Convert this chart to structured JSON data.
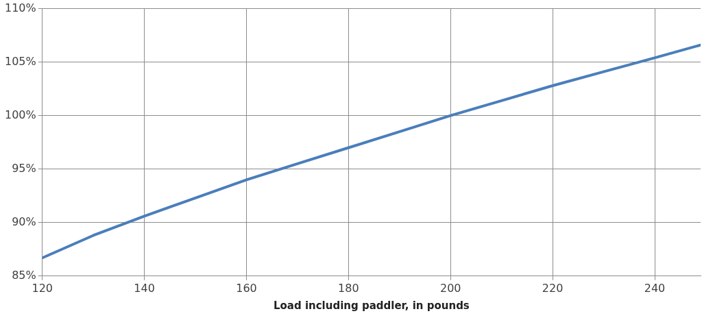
{
  "chart_data": {
    "type": "line",
    "xlabel": "Load including paddler, in pounds",
    "x": [
      120,
      130,
      140,
      150,
      160,
      170,
      180,
      190,
      200,
      210,
      220,
      230,
      240,
      249
    ],
    "series": [
      {
        "color": "#4a7ebb",
        "values": [
          86.7,
          88.8,
          90.6,
          92.3,
          94.0,
          95.5,
          97.0,
          98.5,
          100.0,
          101.4,
          102.8,
          104.1,
          105.4,
          106.6
        ]
      }
    ],
    "xlim": [
      120,
      249
    ],
    "xticks": [
      120,
      140,
      160,
      180,
      200,
      220,
      240
    ],
    "ylim": [
      85,
      110
    ],
    "yticks": [
      {
        "value": 85,
        "label": "85%"
      },
      {
        "value": 90,
        "label": "90%"
      },
      {
        "value": 95,
        "label": "95%"
      },
      {
        "value": 100,
        "label": "100%"
      },
      {
        "value": 105,
        "label": "105%"
      },
      {
        "value": 110,
        "label": "110%"
      }
    ],
    "grid": true,
    "legend": false,
    "marker": "none",
    "line_style": "solid"
  }
}
